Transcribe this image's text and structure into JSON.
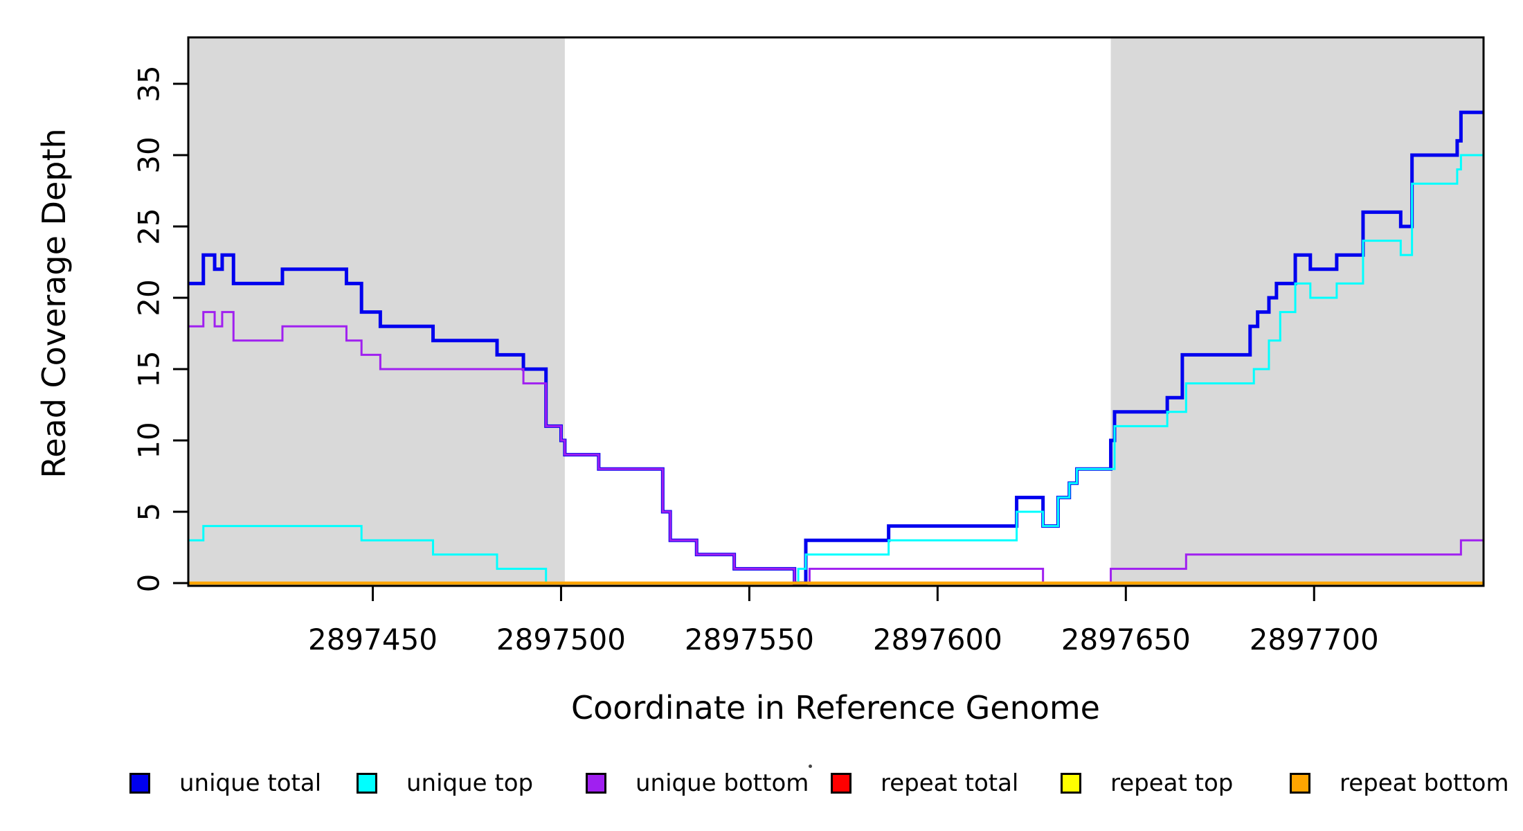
{
  "chart_data": {
    "type": "line",
    "subtype": "step-coverage",
    "title": "",
    "xlabel": "Coordinate in Reference Genome",
    "ylabel": "Read Coverage Depth",
    "xlim": [
      2897401,
      2897745
    ],
    "ylim": [
      0,
      38.3
    ],
    "x_ticks": [
      2897450,
      2897500,
      2897550,
      2897600,
      2897650,
      2897700
    ],
    "y_ticks": [
      0,
      5,
      10,
      15,
      20,
      25,
      30,
      35
    ],
    "grid": false,
    "legend_position": "bottom",
    "background_color": "#ffffff",
    "shade_color": "#d9d9d9",
    "box_color": "#000000",
    "shaded_regions": [
      [
        2897401,
        2897501
      ],
      [
        2897646,
        2897745
      ]
    ],
    "series": [
      {
        "name": "unique total",
        "color": "#0000EE",
        "stroke_width": 5,
        "steps": [
          [
            2897401,
            21
          ],
          [
            2897405,
            23
          ],
          [
            2897408,
            22
          ],
          [
            2897410,
            23
          ],
          [
            2897413,
            21
          ],
          [
            2897426,
            22
          ],
          [
            2897443,
            21
          ],
          [
            2897447,
            19
          ],
          [
            2897452,
            18
          ],
          [
            2897466,
            17
          ],
          [
            2897483,
            16
          ],
          [
            2897490,
            15
          ],
          [
            2897496,
            11
          ],
          [
            2897500,
            10
          ],
          [
            2897501,
            9
          ],
          [
            2897510,
            8
          ],
          [
            2897527,
            5
          ],
          [
            2897529,
            3
          ],
          [
            2897536,
            2
          ],
          [
            2897546,
            1
          ],
          [
            2897562,
            0
          ],
          [
            2897565,
            3
          ],
          [
            2897587,
            4
          ],
          [
            2897621,
            6
          ],
          [
            2897628,
            4
          ],
          [
            2897632,
            6
          ],
          [
            2897635,
            7
          ],
          [
            2897637,
            8
          ],
          [
            2897646,
            10
          ],
          [
            2897647,
            12
          ],
          [
            2897661,
            13
          ],
          [
            2897665,
            16
          ],
          [
            2897683,
            18
          ],
          [
            2897685,
            19
          ],
          [
            2897688,
            20
          ],
          [
            2897690,
            21
          ],
          [
            2897695,
            23
          ],
          [
            2897699,
            22
          ],
          [
            2897706,
            23
          ],
          [
            2897713,
            26
          ],
          [
            2897723,
            25
          ],
          [
            2897726,
            30
          ],
          [
            2897738,
            31
          ],
          [
            2897739,
            33
          ]
        ]
      },
      {
        "name": "unique top",
        "color": "#00FFFF",
        "stroke_width": 3,
        "steps": [
          [
            2897401,
            3
          ],
          [
            2897405,
            4
          ],
          [
            2897447,
            3
          ],
          [
            2897466,
            2
          ],
          [
            2897483,
            1
          ],
          [
            2897496,
            0
          ],
          [
            2897563,
            1
          ],
          [
            2897565,
            2
          ],
          [
            2897587,
            3
          ],
          [
            2897621,
            5
          ],
          [
            2897628,
            4
          ],
          [
            2897632,
            6
          ],
          [
            2897635,
            7
          ],
          [
            2897637,
            8
          ],
          [
            2897647,
            11
          ],
          [
            2897661,
            12
          ],
          [
            2897666,
            14
          ],
          [
            2897684,
            15
          ],
          [
            2897688,
            17
          ],
          [
            2897691,
            19
          ],
          [
            2897695,
            21
          ],
          [
            2897699,
            20
          ],
          [
            2897706,
            21
          ],
          [
            2897713,
            24
          ],
          [
            2897723,
            23
          ],
          [
            2897726,
            28
          ],
          [
            2897738,
            29
          ],
          [
            2897739,
            30
          ]
        ]
      },
      {
        "name": "unique bottom",
        "color": "#A020F0",
        "stroke_width": 3,
        "steps": [
          [
            2897401,
            18
          ],
          [
            2897405,
            19
          ],
          [
            2897408,
            18
          ],
          [
            2897410,
            19
          ],
          [
            2897413,
            17
          ],
          [
            2897426,
            18
          ],
          [
            2897443,
            17
          ],
          [
            2897447,
            16
          ],
          [
            2897452,
            15
          ],
          [
            2897490,
            14
          ],
          [
            2897496,
            11
          ],
          [
            2897500,
            10
          ],
          [
            2897501,
            9
          ],
          [
            2897510,
            8
          ],
          [
            2897527,
            5
          ],
          [
            2897529,
            3
          ],
          [
            2897536,
            2
          ],
          [
            2897546,
            1
          ],
          [
            2897562,
            0
          ],
          [
            2897566,
            1
          ],
          [
            2897628,
            0
          ],
          [
            2897646,
            1
          ],
          [
            2897666,
            2
          ],
          [
            2897739,
            3
          ]
        ]
      },
      {
        "name": "repeat total",
        "color": "#FF0000",
        "stroke_width": 3,
        "steps": [
          [
            2897401,
            0
          ]
        ]
      },
      {
        "name": "repeat top",
        "color": "#FFFF00",
        "stroke_width": 3,
        "steps": [
          [
            2897401,
            0
          ]
        ]
      },
      {
        "name": "repeat bottom",
        "color": "#FFA500",
        "stroke_width": 4.5,
        "steps": [
          [
            2897401,
            0
          ]
        ]
      }
    ],
    "legend": [
      {
        "label": "unique total",
        "color": "#0000EE"
      },
      {
        "label": "unique top",
        "color": "#00FFFF"
      },
      {
        "label": "unique bottom",
        "color": "#A020F0"
      },
      {
        "label": "repeat total",
        "color": "#FF0000"
      },
      {
        "label": "repeat top",
        "color": "#FFFF00"
      },
      {
        "label": "repeat bottom",
        "color": "#FFA500"
      }
    ]
  }
}
